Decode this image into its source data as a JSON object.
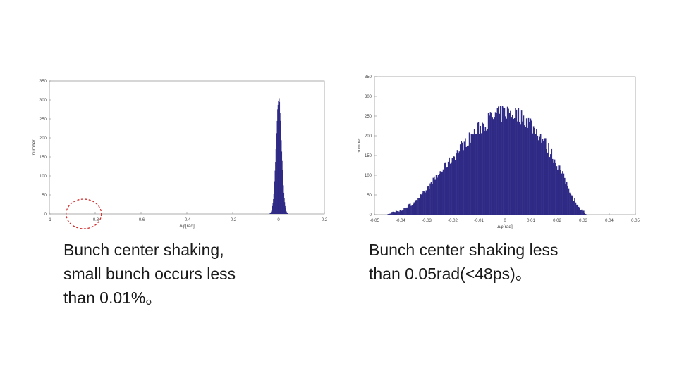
{
  "chart_data": [
    {
      "type": "bar",
      "title": "",
      "xlabel": "Δφ[rad]",
      "ylabel": "number",
      "xlim": [
        -1,
        0.2
      ],
      "ylim": [
        0,
        350
      ],
      "xticks": [
        "-1",
        "-0.8",
        "-0.6",
        "-0.4",
        "-0.2",
        "0",
        "0.2"
      ],
      "yticks": [
        "0",
        "50",
        "100",
        "150",
        "200",
        "250",
        "300",
        "350"
      ],
      "grid": false,
      "color": "#2e2a85",
      "annotation": "dashed red circle near x = -0.85, y = 0",
      "peak": {
        "center": 0.0,
        "max": 310
      }
    },
    {
      "type": "bar",
      "title": "",
      "xlabel": "Δφ[rad]",
      "ylabel": "number",
      "xlim": [
        -0.05,
        0.05
      ],
      "ylim": [
        0,
        350
      ],
      "xticks": [
        "-0.05",
        "-0.04",
        "-0.03",
        "-0.02",
        "-0.01",
        "0",
        "0.01",
        "0.02",
        "0.03",
        "0.04",
        "0.05"
      ],
      "yticks": [
        "0",
        "50",
        "100",
        "150",
        "200",
        "250",
        "300",
        "350"
      ],
      "grid": false,
      "color": "#2e2a85",
      "envelope": {
        "x": [
          -0.045,
          -0.04,
          -0.035,
          -0.03,
          -0.025,
          -0.02,
          -0.015,
          -0.01,
          -0.005,
          0.0,
          0.005,
          0.01,
          0.015,
          0.02,
          0.025,
          0.028,
          0.031
        ],
        "y": [
          2,
          10,
          30,
          65,
          105,
          145,
          185,
          220,
          245,
          260,
          255,
          230,
          185,
          130,
          60,
          20,
          3
        ]
      }
    }
  ],
  "captions": {
    "left": "Bunch center shaking,\nsmall bunch occurs less\nthan 0.01%。",
    "right": "Bunch center shaking less\nthan 0.05rad(<48ps)。"
  }
}
